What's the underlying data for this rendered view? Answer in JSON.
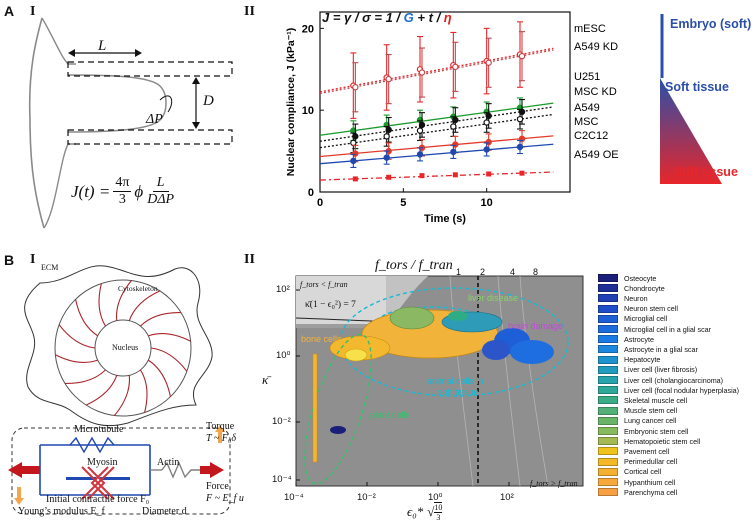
{
  "panels": {
    "A": "A",
    "B": "B",
    "AI": "I",
    "AII": "II",
    "BI": "I",
    "BII": "II"
  },
  "pipette": {
    "L": "L",
    "D": "D",
    "dP": "ΔP",
    "formula_lhs": "J(t) =",
    "formula_frac1_num": "4π",
    "formula_frac1_den": "3",
    "formula_phi": "ϕ",
    "formula_frac2_num": "L",
    "formula_frac2_den": "DΔP"
  },
  "compliance_chart": {
    "equation_parts": [
      "J = ",
      "γ",
      " / ",
      "σ",
      " = 1 / ",
      "G",
      " + ",
      "t",
      " / ",
      "η"
    ],
    "equation_colors": [
      "#111111",
      "#111111",
      "#111111",
      "#111111",
      "#111111",
      "#1f6fd1",
      "#111111",
      "#111111",
      "#111111",
      "#e0201b"
    ],
    "ylabel": "Nuclear compliance, J (kPa⁻¹)",
    "xlabel": "Time (s)",
    "xticks": [
      "0",
      "5",
      "10"
    ],
    "yticks": [
      "0",
      "10",
      "20"
    ],
    "series_labels": [
      "mESC",
      "A549 KD",
      "U251",
      "MSC KD",
      "A549",
      "MSC",
      "C2C12",
      "A549 OE"
    ],
    "scale_top": "Embryo (soft)",
    "scale_mid": "Soft tissue",
    "scale_bottom": "Stiff tissue",
    "colors": {
      "embryo": "#2a4fa8",
      "stiff": "#e8262a"
    }
  },
  "chart_data": {
    "type": "line",
    "title": "",
    "xlabel": "Time (s)",
    "ylabel": "Nuclear compliance, J (kPa⁻¹)",
    "xlim": [
      0,
      15
    ],
    "ylim": [
      0,
      22
    ],
    "x": [
      2,
      4,
      6,
      8,
      10,
      12
    ],
    "series": [
      {
        "name": "mESC",
        "values": [
          13.0,
          14.0,
          15.0,
          15.5,
          16.0,
          16.8
        ],
        "err": 4
      },
      {
        "name": "A549 KD",
        "values": [
          12.8,
          13.8,
          14.6,
          15.3,
          15.8,
          16.6
        ],
        "err": 3
      },
      {
        "name": "U251",
        "values": [
          7.5,
          8.2,
          8.8,
          9.2,
          9.8,
          10.3
        ],
        "err": 1.2
      },
      {
        "name": "MSC KD",
        "values": [
          6.8,
          7.6,
          8.2,
          8.8,
          9.3,
          9.8
        ],
        "err": 1.5
      },
      {
        "name": "A549",
        "values": [
          6.0,
          6.8,
          7.5,
          8.0,
          8.5,
          8.9
        ],
        "err": 1.2
      },
      {
        "name": "MSC",
        "values": [
          4.7,
          5.0,
          5.4,
          5.8,
          6.1,
          6.5
        ],
        "err": 1.0
      },
      {
        "name": "C2C12",
        "values": [
          3.8,
          4.2,
          4.6,
          4.9,
          5.2,
          5.5
        ],
        "err": 0.8
      },
      {
        "name": "A549 OE",
        "values": [
          1.6,
          1.8,
          2.0,
          2.1,
          2.2,
          2.3
        ],
        "err": 0.2
      }
    ]
  },
  "cell_model": {
    "ecm": "ECM",
    "cytoskeleton": "Cytoskeleton",
    "nucleus": "Nucleus",
    "microtubule": "Microtubule",
    "myosin": "Myosin",
    "actin": "Actin",
    "torque_a": "Torque",
    "torque_b": "T ~ F₀δ",
    "force_a": "Force",
    "force_b": "F ~ E_f u",
    "initial_force": "Initial contractile force F₀",
    "youngs": "Young’s modulus E_f",
    "diameter": "Diameter d"
  },
  "phase_diagram": {
    "top_label": "f_tors / f_tran",
    "xlabel_main": "ϵ₀*",
    "xlabel_sqrt_num": "10",
    "xlabel_sqrt_den": "3",
    "ylabel": "κ̄",
    "region_upper_left": "f_tors < f_tran",
    "region_lower_right": "f_tors > f_tran",
    "curve_label": "κ̄(1 − ϵ₀²) = 7",
    "ratio_ticks": [
      "1",
      "2",
      "4",
      "8"
    ],
    "xticks": [
      "10⁻⁴",
      "10⁻²",
      "10⁰",
      "10²"
    ],
    "yticks": [
      "10²",
      "10⁰",
      "10⁻²",
      "10⁻⁴"
    ],
    "annotations": {
      "liver": "liver disease",
      "brain": "brain damage",
      "bone": "bone cells",
      "animal_a": "animal cells in",
      "animal_b": "soft tissue",
      "plant": "plant cells"
    }
  },
  "legend": [
    {
      "label": "Osteocyte",
      "color": "#1b1f7a"
    },
    {
      "label": "Chondrocyte",
      "color": "#1d2e97"
    },
    {
      "label": "Neuron",
      "color": "#1f3fb3"
    },
    {
      "label": "Neuron stem cell",
      "color": "#1e4ec8"
    },
    {
      "label": "Microglial cell",
      "color": "#1d5fd4"
    },
    {
      "label": "Microglial cell in a glial scar",
      "color": "#1c6cdc"
    },
    {
      "label": "Astrocyte",
      "color": "#1b7ae2"
    },
    {
      "label": "Astrocyte in a glial scar",
      "color": "#1c87dc"
    },
    {
      "label": "Hepatocyte",
      "color": "#1e93cf"
    },
    {
      "label": "Liver cell (liver fibrosis)",
      "color": "#219cbf"
    },
    {
      "label": "Liver cell (cholangiocarcinoma)",
      "color": "#26a3ad"
    },
    {
      "label": "Liver cell (focal nodular hyperplasia)",
      "color": "#2ea898"
    },
    {
      "label": "Skeletal muscle cell",
      "color": "#3cac86"
    },
    {
      "label": "Muscle stem cell",
      "color": "#52b077"
    },
    {
      "label": "Lung cancer cell",
      "color": "#6ab46a"
    },
    {
      "label": "Embryonic stem cell",
      "color": "#86b85d"
    },
    {
      "label": "Hematopoietic stem cell",
      "color": "#a3ba52"
    },
    {
      "label": "Pavement cell",
      "color": "#f0c21c"
    },
    {
      "label": "Perimedullar cell",
      "color": "#f3b927"
    },
    {
      "label": "Cortical cell",
      "color": "#f5b031"
    },
    {
      "label": "Hypanthium cell",
      "color": "#f6a83a"
    },
    {
      "label": "Parenchyma cell",
      "color": "#f7a042"
    }
  ]
}
